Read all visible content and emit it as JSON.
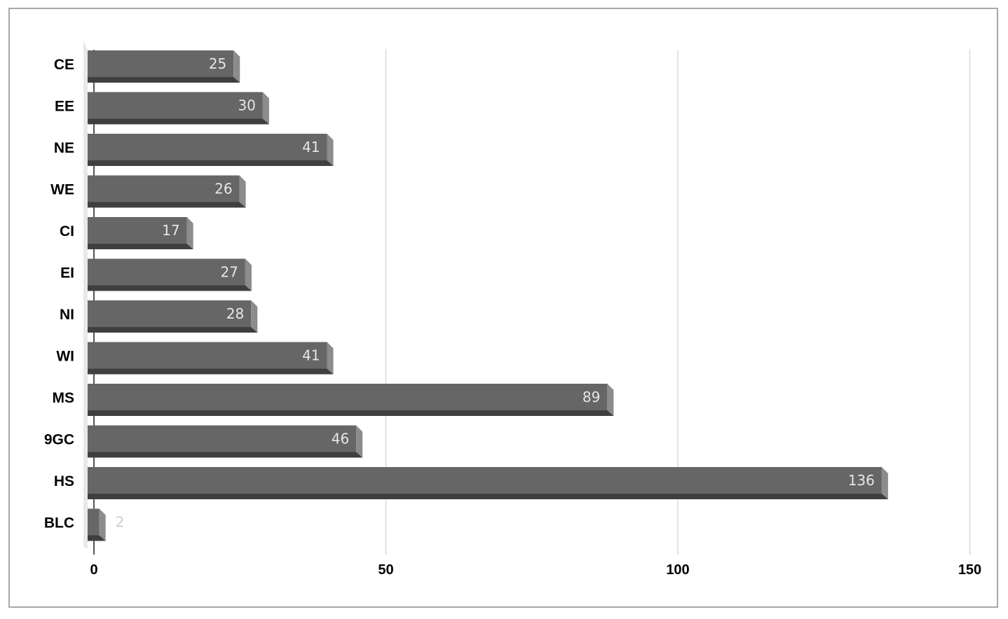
{
  "chart_data": {
    "type": "bar",
    "orientation": "horizontal",
    "style": "3d",
    "title": "",
    "xlabel": "",
    "ylabel": "",
    "categories": [
      "CE",
      "EE",
      "NE",
      "WE",
      "CI",
      "EI",
      "NI",
      "WI",
      "MS",
      "9GC",
      "HS",
      "BLC"
    ],
    "values": [
      25,
      30,
      41,
      26,
      17,
      27,
      28,
      41,
      89,
      46,
      136,
      2
    ],
    "xlim": [
      0,
      150
    ],
    "xticks": [
      0,
      50,
      100,
      150
    ],
    "grid": true,
    "legend": "none",
    "data_labels": true,
    "colors": {
      "bar_front": "#666666",
      "bar_bottom": "#3f3f3f",
      "bar_end": "#8c8c8c",
      "bar_end_bottom": "#4a4a4a",
      "gridline": "#d9d9d9",
      "floor": "#e8e8e8",
      "value_label": "#e6e6e6"
    }
  }
}
